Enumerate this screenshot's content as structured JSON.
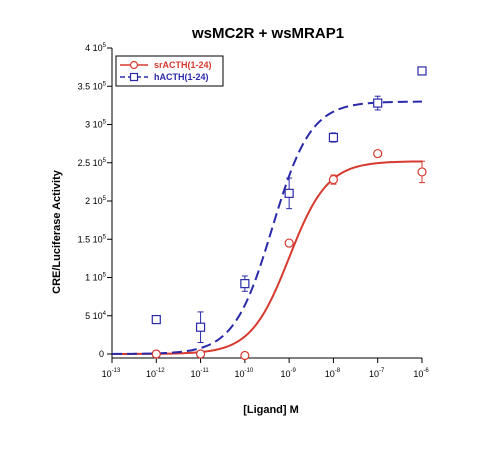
{
  "chart_data": {
    "type": "scatter",
    "title": "wsMC2R + wsMRAP1",
    "xlabel": "[Ligand] M",
    "ylabel": "CRE/Luciferase Activity",
    "x_scale": "log",
    "xlim": [
      1e-13,
      1e-06
    ],
    "ylim": [
      0,
      400000
    ],
    "x_ticks": [
      {
        "base": "10",
        "exp": "-13",
        "value": 1e-13
      },
      {
        "base": "10",
        "exp": "-12",
        "value": 1e-12
      },
      {
        "base": "10",
        "exp": "-11",
        "value": 1e-11
      },
      {
        "base": "10",
        "exp": "-10",
        "value": 1e-10
      },
      {
        "base": "10",
        "exp": "-9",
        "value": 1e-09
      },
      {
        "base": "10",
        "exp": "-8",
        "value": 1e-08
      },
      {
        "base": "10",
        "exp": "-7",
        "value": 1e-07
      },
      {
        "base": "10",
        "exp": "-6",
        "value": 1e-06
      }
    ],
    "y_ticks": [
      {
        "mant": "0",
        "exp": "",
        "value": 0
      },
      {
        "mant": "5 10",
        "exp": "4",
        "value": 50000
      },
      {
        "mant": "1 10",
        "exp": "5",
        "value": 100000
      },
      {
        "mant": "1.5 10",
        "exp": "5",
        "value": 150000
      },
      {
        "mant": "2 10",
        "exp": "5",
        "value": 200000
      },
      {
        "mant": "2.5 10",
        "exp": "5",
        "value": 250000
      },
      {
        "mant": "3 10",
        "exp": "5",
        "value": 300000
      },
      {
        "mant": "3.5 10",
        "exp": "5",
        "value": 350000
      },
      {
        "mant": "4 10",
        "exp": "5",
        "value": 400000
      }
    ],
    "grid": false,
    "legend_position": "top-left",
    "series": [
      {
        "name": "srACTH(1-24)",
        "color": "#d63a2f",
        "marker": "circle",
        "line": "solid",
        "points": [
          {
            "x": 1e-12,
            "y": 0,
            "err": 0
          },
          {
            "x": 1e-11,
            "y": 0,
            "err": 0
          },
          {
            "x": 1e-10,
            "y": -2000,
            "err": 0
          },
          {
            "x": 1e-09,
            "y": 145000,
            "err": 2000
          },
          {
            "x": 1e-08,
            "y": 228000,
            "err": 6000
          },
          {
            "x": 1e-07,
            "y": 262000,
            "err": 4000
          },
          {
            "x": 1e-06,
            "y": 238000,
            "err": 14000
          }
        ],
        "fit": {
          "bottom": 0,
          "top": 252000,
          "log_ec50": -9.0,
          "hill": 1.0
        }
      },
      {
        "name": "hACTH(1-24)",
        "color": "#2a2aa8",
        "marker": "square",
        "line": "dashed",
        "points": [
          {
            "x": 1e-12,
            "y": 45000,
            "err": 4000
          },
          {
            "x": 1e-11,
            "y": 35000,
            "err": 20000
          },
          {
            "x": 1e-10,
            "y": 92000,
            "err": 10000
          },
          {
            "x": 1e-09,
            "y": 210000,
            "err": 20000
          },
          {
            "x": 1e-08,
            "y": 283000,
            "err": 6000
          },
          {
            "x": 1e-07,
            "y": 328000,
            "err": 9000
          },
          {
            "x": 1e-06,
            "y": 370000,
            "err": 0
          }
        ],
        "fit": {
          "bottom": 0,
          "top": 330000,
          "log_ec50": -9.38,
          "hill": 1.0
        }
      }
    ]
  }
}
